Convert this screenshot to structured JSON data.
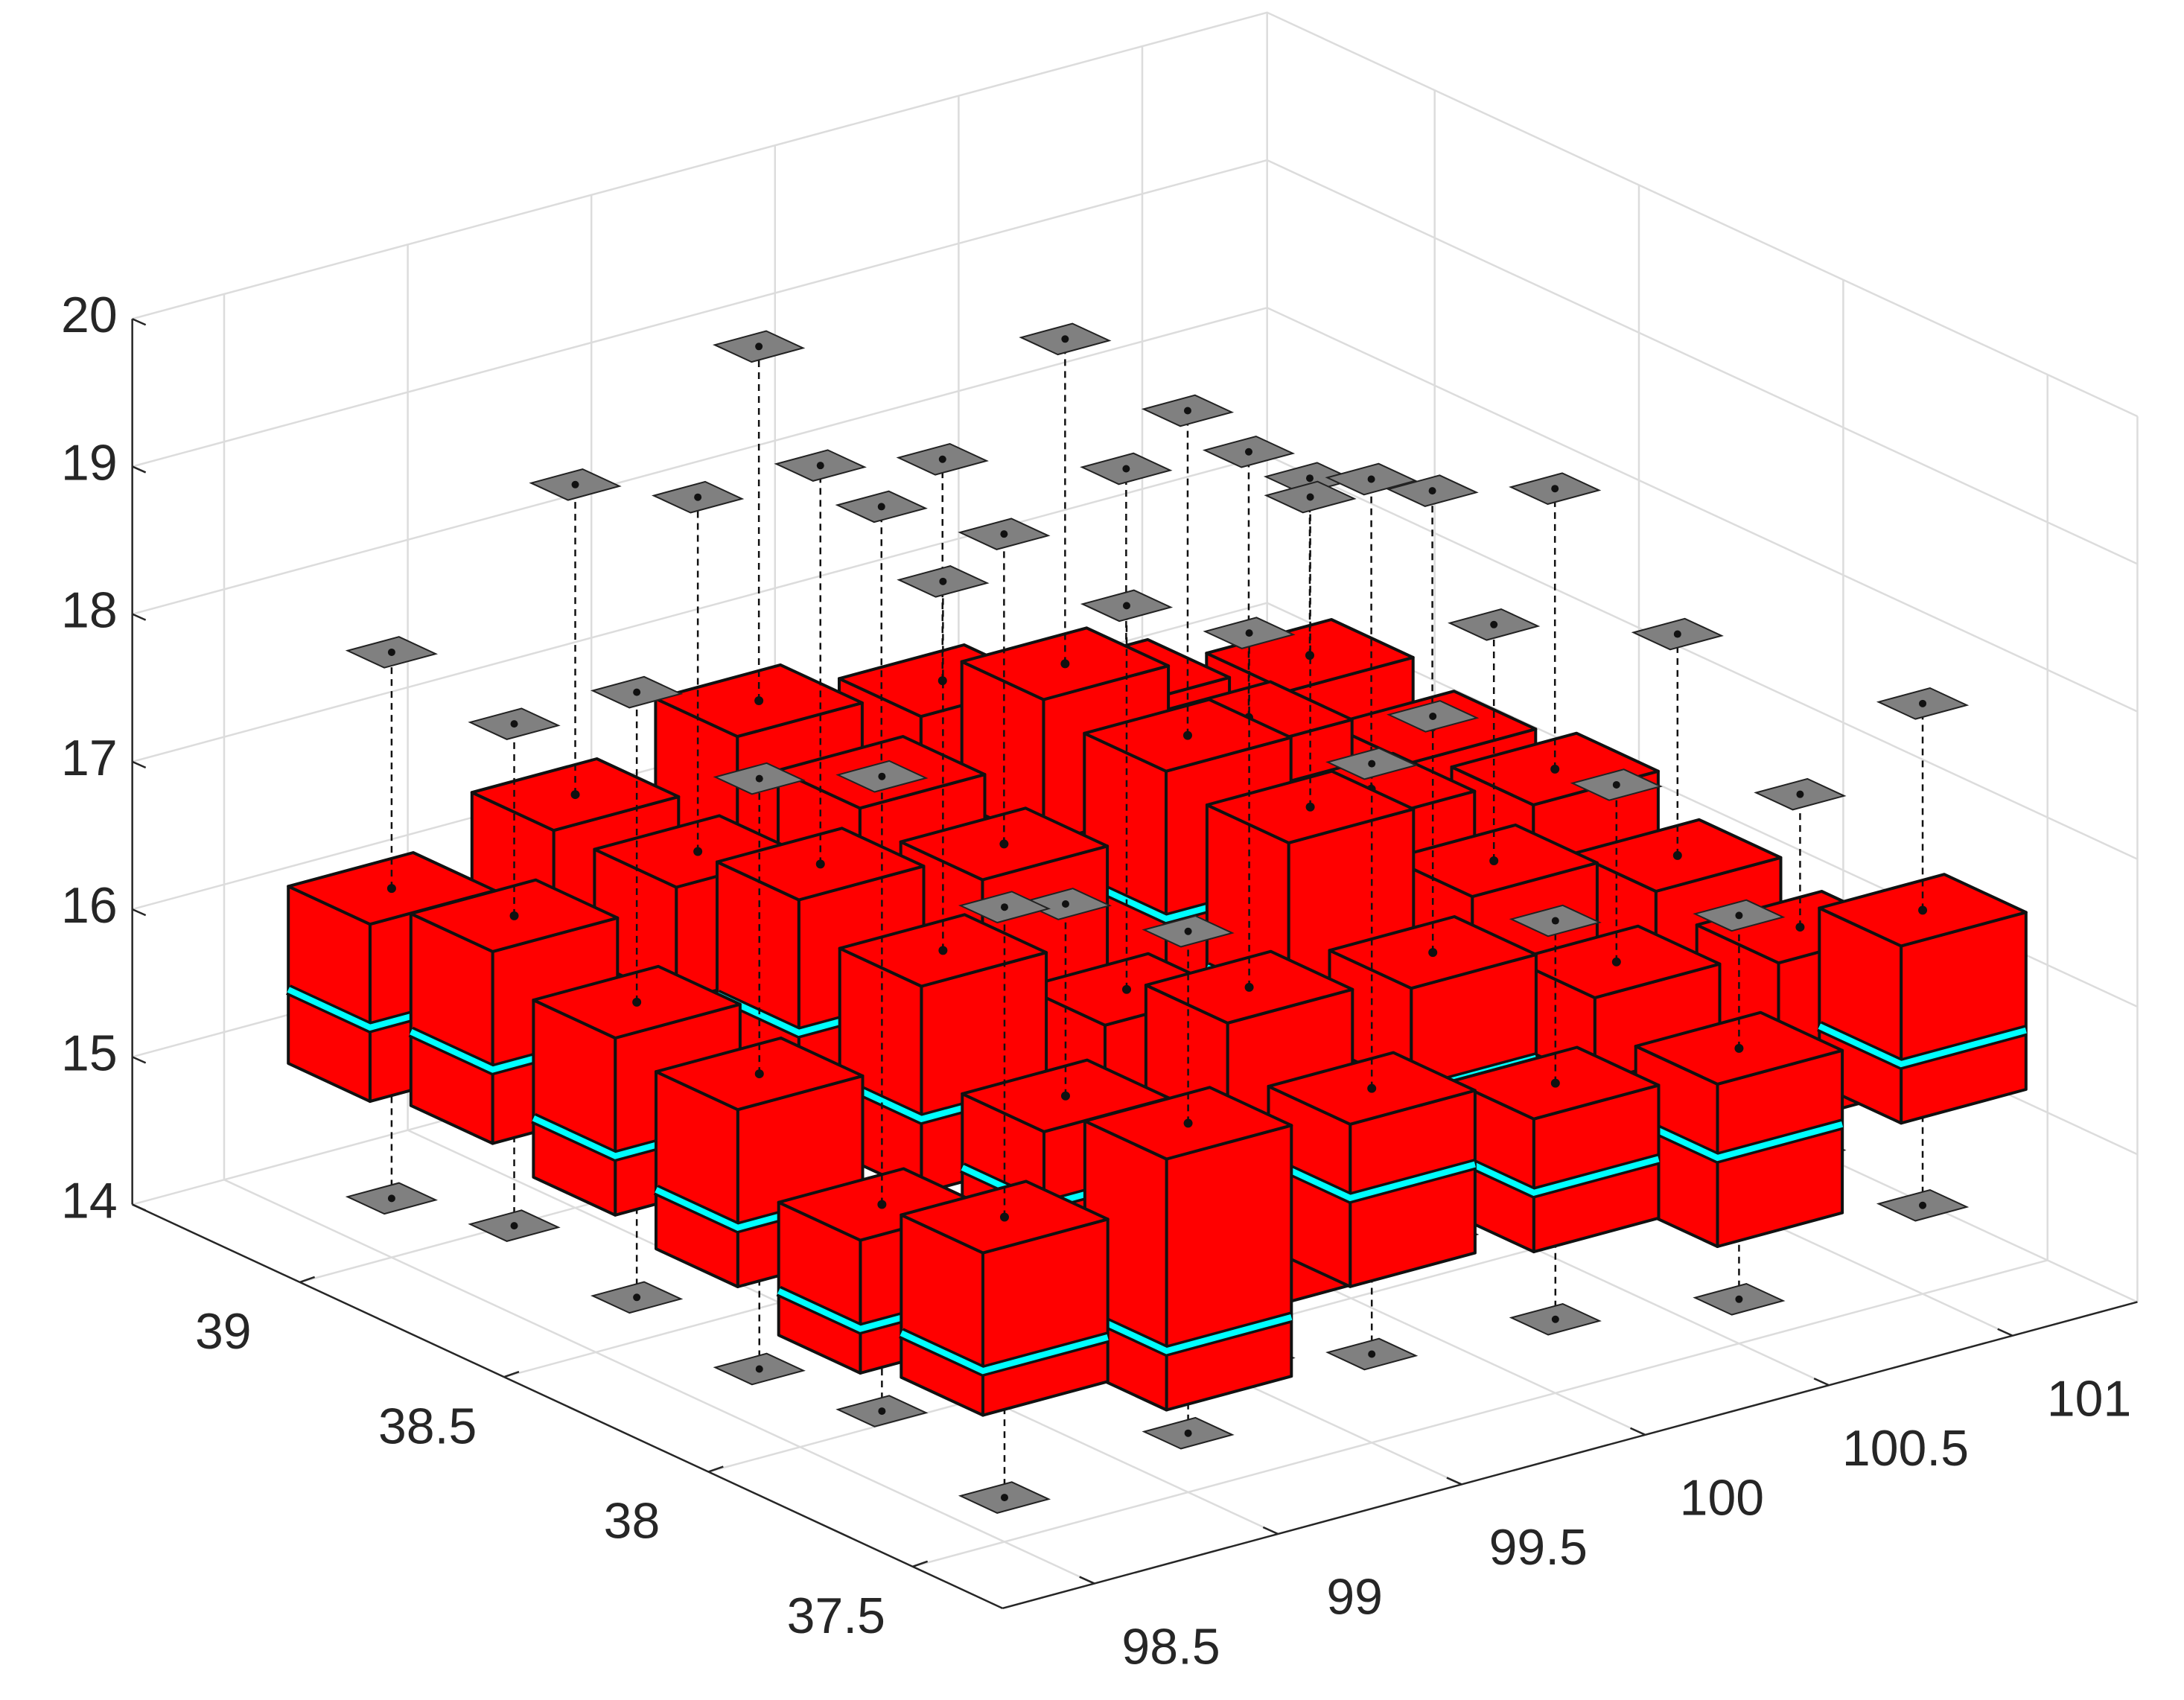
{
  "chart_data": {
    "type": "box3d",
    "xlim": [
      98.25,
      101.34
    ],
    "ylim": [
      37.28,
      39.41
    ],
    "zlim": [
      14,
      20
    ],
    "xticks": [
      98.5,
      99,
      99.5,
      100,
      100.5,
      101
    ],
    "yticks": [
      37.5,
      38,
      38.5,
      39
    ],
    "zticks": [
      14,
      15,
      16,
      17,
      18,
      19,
      20
    ],
    "grid": true,
    "box_color": "#ff0000",
    "median_color": "#00ffff",
    "marker_color": "#808080",
    "boxes": [
      {
        "x": 98.5,
        "y": 37.5,
        "min": 14.3,
        "q1": 15.1,
        "median": 15.4,
        "q3": 16.2,
        "max": 18.3
      },
      {
        "x": 99,
        "y": 37.5,
        "min": 14.4,
        "q1": 14.8,
        "median": 15.2,
        "q3": 16.5,
        "max": 17.8
      },
      {
        "x": 99.5,
        "y": 37.5,
        "min": 14.6,
        "q1": 15.3,
        "median": 15.9,
        "q3": 16.4,
        "max": 18.6
      },
      {
        "x": 100,
        "y": 37.5,
        "min": 14.5,
        "q1": 15.2,
        "median": 15.6,
        "q3": 16.1,
        "max": 17.2
      },
      {
        "x": 100.5,
        "y": 37.5,
        "min": 14.3,
        "q1": 14.9,
        "median": 15.5,
        "q3": 16.0,
        "max": 16.9
      },
      {
        "x": 101,
        "y": 37.5,
        "min": 14.6,
        "q1": 15.4,
        "median": 15.8,
        "q3": 16.6,
        "max": 18.0
      },
      {
        "x": 98.5,
        "y": 37.8,
        "min": 14.5,
        "q1": 15.0,
        "median": 15.3,
        "q3": 15.9,
        "max": 18.8
      },
      {
        "x": 99,
        "y": 37.8,
        "min": 14.4,
        "q1": 15.3,
        "median": 15.8,
        "q3": 16.3,
        "max": 17.6
      },
      {
        "x": 99.5,
        "y": 37.8,
        "min": 14.2,
        "q1": 14.7,
        "median": 15.1,
        "q3": 16.7,
        "max": 19.1
      },
      {
        "x": 100,
        "y": 37.8,
        "min": 14.7,
        "q1": 15.4,
        "median": 15.9,
        "q3": 16.6,
        "max": 18.2
      },
      {
        "x": 100.5,
        "y": 37.8,
        "min": 14.5,
        "q1": 15.2,
        "median": 15.6,
        "q3": 16.2,
        "max": 17.4
      },
      {
        "x": 101,
        "y": 37.8,
        "min": 14.6,
        "q1": 15.0,
        "median": 15.4,
        "q3": 16.1,
        "max": 17.0
      },
      {
        "x": 98.5,
        "y": 38.1,
        "min": 14.4,
        "q1": 15.2,
        "median": 15.6,
        "q3": 16.4,
        "max": 18.4
      },
      {
        "x": 99,
        "y": 38.1,
        "min": 14.6,
        "q1": 15.5,
        "median": 16.0,
        "q3": 16.9,
        "max": 19.4
      },
      {
        "x": 99.5,
        "y": 38.1,
        "min": 14.3,
        "q1": 15.1,
        "median": 15.5,
        "q3": 16.3,
        "max": 18.9
      },
      {
        "x": 100,
        "y": 38.1,
        "min": 14.5,
        "q1": 15.6,
        "median": 16.1,
        "q3": 17.2,
        "max": 19.3
      },
      {
        "x": 100.5,
        "y": 38.1,
        "min": 14.7,
        "q1": 15.3,
        "median": 15.8,
        "q3": 16.5,
        "max": 18.1
      },
      {
        "x": 101,
        "y": 38.1,
        "min": 14.4,
        "q1": 15.1,
        "median": 15.5,
        "q3": 16.2,
        "max": 17.7
      },
      {
        "x": 98.5,
        "y": 38.4,
        "min": 14.5,
        "q1": 15.3,
        "median": 15.7,
        "q3": 16.5,
        "max": 18.6
      },
      {
        "x": 99,
        "y": 38.4,
        "min": 14.8,
        "q1": 15.6,
        "median": 16.2,
        "q3": 17.1,
        "max": 19.8
      },
      {
        "x": 99.5,
        "y": 38.4,
        "min": 14.6,
        "q1": 15.4,
        "median": 15.9,
        "q3": 16.9,
        "max": 19.0
      },
      {
        "x": 100,
        "y": 38.4,
        "min": 14.5,
        "q1": 15.7,
        "median": 16.3,
        "q3": 17.3,
        "max": 19.5
      },
      {
        "x": 100.5,
        "y": 38.4,
        "min": 14.4,
        "q1": 15.2,
        "median": 15.7,
        "q3": 16.6,
        "max": 18.7
      },
      {
        "x": 101,
        "y": 38.4,
        "min": 14.6,
        "q1": 15.3,
        "median": 15.7,
        "q3": 16.4,
        "max": 18.3
      },
      {
        "x": 98.5,
        "y": 38.7,
        "min": 14.6,
        "q1": 15.4,
        "median": 15.9,
        "q3": 16.7,
        "max": 18.0
      },
      {
        "x": 99,
        "y": 38.7,
        "min": 14.5,
        "q1": 15.5,
        "median": 16.0,
        "q3": 16.8,
        "max": 19.2
      },
      {
        "x": 99.5,
        "y": 38.7,
        "min": 14.7,
        "q1": 15.6,
        "median": 16.1,
        "q3": 17.0,
        "max": 18.8
      },
      {
        "x": 100,
        "y": 38.7,
        "min": 14.6,
        "q1": 15.8,
        "median": 16.4,
        "q3": 17.4,
        "max": 19.6
      },
      {
        "x": 100.5,
        "y": 38.7,
        "min": 14.5,
        "q1": 15.3,
        "median": 15.8,
        "q3": 16.7,
        "max": 18.5
      },
      {
        "x": 101,
        "y": 38.7,
        "min": 14.4,
        "q1": 15.2,
        "median": 15.6,
        "q3": 16.3,
        "max": 17.9
      },
      {
        "x": 98.5,
        "y": 39.0,
        "min": 14.4,
        "q1": 15.3,
        "median": 15.8,
        "q3": 16.5,
        "max": 18.1
      },
      {
        "x": 99,
        "y": 39.0,
        "min": 14.6,
        "q1": 15.5,
        "median": 15.9,
        "q3": 16.8,
        "max": 18.9
      },
      {
        "x": 99.5,
        "y": 39.0,
        "min": 14.5,
        "q1": 15.6,
        "median": 16.2,
        "q3": 17.1,
        "max": 19.5
      },
      {
        "x": 100,
        "y": 39.0,
        "min": 14.7,
        "q1": 15.7,
        "median": 16.1,
        "q3": 16.9,
        "max": 18.4
      },
      {
        "x": 100.5,
        "y": 39.0,
        "min": 14.6,
        "q1": 15.4,
        "median": 15.9,
        "q3": 16.6,
        "max": 18.0
      },
      {
        "x": 101,
        "y": 39.0,
        "min": 14.5,
        "q1": 15.3,
        "median": 15.7,
        "q3": 16.4,
        "max": 17.6
      }
    ]
  }
}
